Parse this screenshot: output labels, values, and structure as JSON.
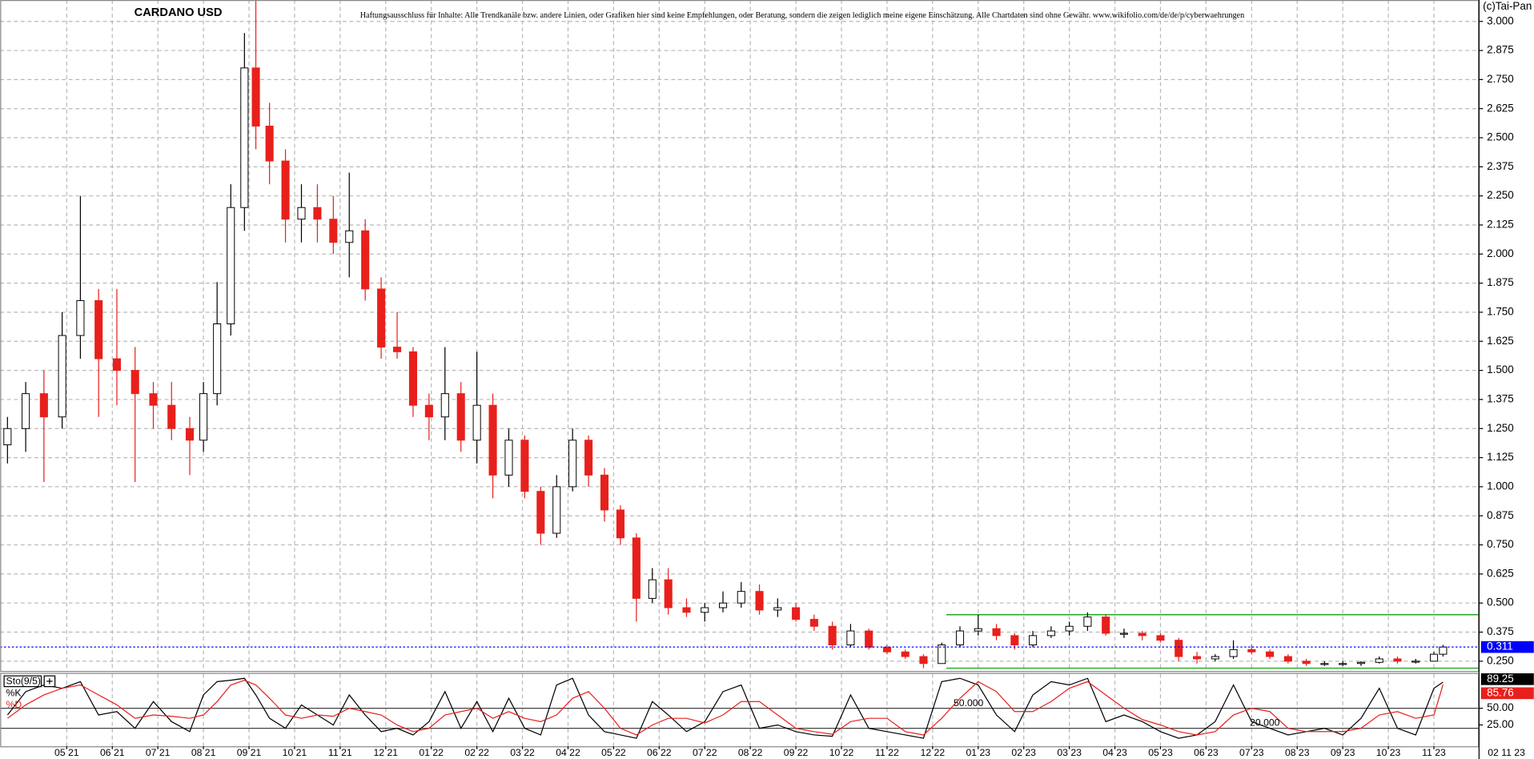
{
  "chart_data": [
    {
      "type": "candlestick",
      "title": "CARDANO USD",
      "disclaimer": "Haftungsausschluss für Inhalte: Alle Trendkanäle bzw. andere Linien, oder Grafiken hier sind keine Empfehlungen, oder Beratung, sondern die zeigen lediglich meine eigene Einschätzung. Alle Chartdaten sind ohne Gewähr. www.wikifolio.com/de/de/p/cyberwaehrungen",
      "copyright": "(c)Tai-Pan",
      "x_end_label": "02 11 23",
      "up_color": "#ffffff",
      "down_color": "#e8201c",
      "x": [
        -1.3,
        -0.9,
        -0.5,
        -0.1,
        0.3,
        0.7,
        1.1,
        1.5,
        1.9,
        2.3,
        2.7,
        3.0,
        3.3,
        3.6,
        3.9,
        4.15,
        4.45,
        4.8,
        5.15,
        5.5,
        5.85,
        6.2,
        6.55,
        6.9,
        7.25,
        7.6,
        7.95,
        8.3,
        8.65,
        9.0,
        9.35,
        9.7,
        10.05,
        10.4,
        10.75,
        11.1,
        11.45,
        11.8,
        12.15,
        12.5,
        12.85,
        13.2,
        13.6,
        14.0,
        14.4,
        14.8,
        15.2,
        15.6,
        16.0,
        16.4,
        16.8,
        17.2,
        17.6,
        18.0,
        18.4,
        18.8,
        19.2,
        19.6,
        20.0,
        20.4,
        20.8,
        21.2,
        21.6,
        22.0,
        22.4,
        22.8,
        23.2,
        23.6,
        24.0,
        24.4,
        24.8,
        25.2,
        25.6,
        26.0,
        26.4,
        26.8,
        27.2,
        27.6,
        28.0,
        28.4,
        28.8,
        29.2,
        29.6,
        30.0,
        30.2
      ],
      "open": [
        1.18,
        1.25,
        1.4,
        1.3,
        1.65,
        1.8,
        1.55,
        1.5,
        1.4,
        1.35,
        1.25,
        1.2,
        1.4,
        1.7,
        2.2,
        2.8,
        2.55,
        2.4,
        2.15,
        2.2,
        2.15,
        2.05,
        2.1,
        1.85,
        1.6,
        1.58,
        1.35,
        1.3,
        1.4,
        1.2,
        1.35,
        1.05,
        1.2,
        0.98,
        0.8,
        1.0,
        1.2,
        1.05,
        0.9,
        0.78,
        0.52,
        0.6,
        0.48,
        0.46,
        0.48,
        0.5,
        0.55,
        0.47,
        0.48,
        0.43,
        0.4,
        0.32,
        0.38,
        0.31,
        0.29,
        0.27,
        0.24,
        0.32,
        0.38,
        0.39,
        0.36,
        0.32,
        0.36,
        0.38,
        0.4,
        0.44,
        0.37,
        0.37,
        0.36,
        0.34,
        0.27,
        0.26,
        0.27,
        0.3,
        0.29,
        0.27,
        0.25,
        0.24,
        0.24,
        0.24,
        0.245,
        0.26,
        0.25,
        0.25,
        0.28
      ],
      "high": [
        1.3,
        1.45,
        1.5,
        1.75,
        2.25,
        1.85,
        1.85,
        1.6,
        1.45,
        1.45,
        1.3,
        1.45,
        1.88,
        2.3,
        2.95,
        3.1,
        2.65,
        2.45,
        2.3,
        2.3,
        2.25,
        2.35,
        2.15,
        1.9,
        1.75,
        1.6,
        1.4,
        1.6,
        1.45,
        1.58,
        1.4,
        1.25,
        1.22,
        1.0,
        1.05,
        1.25,
        1.22,
        1.08,
        0.92,
        0.8,
        0.65,
        0.65,
        0.52,
        0.5,
        0.55,
        0.59,
        0.58,
        0.52,
        0.5,
        0.45,
        0.42,
        0.41,
        0.39,
        0.32,
        0.3,
        0.28,
        0.33,
        0.4,
        0.45,
        0.41,
        0.37,
        0.38,
        0.4,
        0.42,
        0.46,
        0.45,
        0.39,
        0.38,
        0.37,
        0.35,
        0.29,
        0.28,
        0.34,
        0.32,
        0.3,
        0.28,
        0.26,
        0.25,
        0.25,
        0.25,
        0.27,
        0.27,
        0.26,
        0.29,
        0.32
      ],
      "low": [
        1.1,
        1.15,
        1.02,
        1.25,
        1.55,
        1.3,
        1.35,
        1.02,
        1.25,
        1.2,
        1.05,
        1.15,
        1.35,
        1.65,
        2.1,
        2.45,
        2.3,
        2.05,
        2.05,
        2.05,
        2.0,
        1.9,
        1.8,
        1.55,
        1.55,
        1.3,
        1.2,
        1.2,
        1.15,
        1.1,
        0.95,
        1.0,
        0.95,
        0.75,
        0.78,
        0.98,
        1.0,
        0.85,
        0.75,
        0.42,
        0.5,
        0.45,
        0.44,
        0.42,
        0.46,
        0.48,
        0.45,
        0.44,
        0.42,
        0.38,
        0.3,
        0.31,
        0.3,
        0.28,
        0.26,
        0.22,
        0.24,
        0.31,
        0.36,
        0.34,
        0.3,
        0.31,
        0.35,
        0.36,
        0.38,
        0.36,
        0.35,
        0.34,
        0.33,
        0.25,
        0.24,
        0.25,
        0.26,
        0.28,
        0.26,
        0.24,
        0.23,
        0.23,
        0.23,
        0.23,
        0.24,
        0.24,
        0.24,
        0.25,
        0.27
      ],
      "close": [
        1.25,
        1.4,
        1.3,
        1.65,
        1.8,
        1.55,
        1.5,
        1.4,
        1.35,
        1.25,
        1.2,
        1.4,
        1.7,
        2.2,
        2.8,
        2.55,
        2.4,
        2.15,
        2.2,
        2.15,
        2.05,
        2.1,
        1.85,
        1.6,
        1.58,
        1.35,
        1.3,
        1.4,
        1.2,
        1.35,
        1.05,
        1.2,
        0.98,
        0.8,
        1.0,
        1.2,
        1.05,
        0.9,
        0.78,
        0.52,
        0.6,
        0.48,
        0.46,
        0.48,
        0.5,
        0.55,
        0.47,
        0.48,
        0.43,
        0.4,
        0.32,
        0.38,
        0.31,
        0.29,
        0.27,
        0.24,
        0.32,
        0.38,
        0.39,
        0.36,
        0.32,
        0.36,
        0.38,
        0.4,
        0.44,
        0.37,
        0.37,
        0.36,
        0.34,
        0.27,
        0.26,
        0.27,
        0.3,
        0.29,
        0.27,
        0.25,
        0.24,
        0.24,
        0.24,
        0.245,
        0.26,
        0.25,
        0.25,
        0.28,
        0.311
      ],
      "current_color": "#0000ff",
      "lines": [
        {
          "y": 0.45,
          "x0": 19.3,
          "color": "#22aa22"
        },
        {
          "y": 0.22,
          "x0": 19.3,
          "color": "#22aa22"
        }
      ],
      "xlim": [
        -1.46,
        30.99
      ],
      "ylim": [
        0.208,
        3.092
      ],
      "grid": true,
      "xticks": [
        {
          "value": 0,
          "label": "05 21"
        },
        {
          "value": 1,
          "label": "06 21"
        },
        {
          "value": 2,
          "label": "07 21"
        },
        {
          "value": 3,
          "label": "08 21"
        },
        {
          "value": 4,
          "label": "09 21"
        },
        {
          "value": 5,
          "label": "10 21"
        },
        {
          "value": 6,
          "label": "11 21"
        },
        {
          "value": 7,
          "label": "12 21"
        },
        {
          "value": 8,
          "label": "01 22"
        },
        {
          "value": 9,
          "label": "02 22"
        },
        {
          "value": 10,
          "label": "03 22"
        },
        {
          "value": 11,
          "label": "04 22"
        },
        {
          "value": 12,
          "label": "05 22"
        },
        {
          "value": 13,
          "label": "06 22"
        },
        {
          "value": 14,
          "label": "07 22"
        },
        {
          "value": 15,
          "label": "08 22"
        },
        {
          "value": 16,
          "label": "09 22"
        },
        {
          "value": 17,
          "label": "10 22"
        },
        {
          "value": 18,
          "label": "11 22"
        },
        {
          "value": 19,
          "label": "12 22"
        },
        {
          "value": 20,
          "label": "01 23"
        },
        {
          "value": 21,
          "label": "02 23"
        },
        {
          "value": 22,
          "label": "03 23"
        },
        {
          "value": 23,
          "label": "04 23"
        },
        {
          "value": 24,
          "label": "05 23"
        },
        {
          "value": 25,
          "label": "06 23"
        },
        {
          "value": 26,
          "label": "07 23"
        },
        {
          "value": 27,
          "label": "08 23"
        },
        {
          "value": 28,
          "label": "09 23"
        },
        {
          "value": 29,
          "label": "10 23"
        },
        {
          "value": 30,
          "label": "11 23"
        }
      ],
      "yticks": [
        {
          "value": 0.25,
          "label": "0.250"
        },
        {
          "value": 0.375,
          "label": "0.375"
        },
        {
          "value": 0.5,
          "label": "0.500"
        },
        {
          "value": 0.625,
          "label": "0.625"
        },
        {
          "value": 0.75,
          "label": "0.750"
        },
        {
          "value": 0.875,
          "label": "0.875"
        },
        {
          "value": 1,
          "label": "1.000"
        },
        {
          "value": 1.125,
          "label": "1.125"
        },
        {
          "value": 1.25,
          "label": "1.250"
        },
        {
          "value": 1.375,
          "label": "1.375"
        },
        {
          "value": 1.5,
          "label": "1.500"
        },
        {
          "value": 1.625,
          "label": "1.625"
        },
        {
          "value": 1.75,
          "label": "1.750"
        },
        {
          "value": 1.875,
          "label": "1.875"
        },
        {
          "value": 2,
          "label": "2.000"
        },
        {
          "value": 2.125,
          "label": "2.125"
        },
        {
          "value": 2.25,
          "label": "2.250"
        },
        {
          "value": 2.375,
          "label": "2.375"
        },
        {
          "value": 2.5,
          "label": "2.500"
        },
        {
          "value": 2.625,
          "label": "2.625"
        },
        {
          "value": 2.75,
          "label": "2.750"
        },
        {
          "value": 2.875,
          "label": "2.875"
        },
        {
          "value": 3,
          "label": "3.000"
        }
      ]
    },
    {
      "type": "line",
      "title": "Sto(9/5)",
      "x": [
        -1.3,
        -0.9,
        -0.5,
        -0.1,
        0.3,
        0.7,
        1.1,
        1.5,
        1.9,
        2.3,
        2.7,
        3.0,
        3.3,
        3.6,
        3.9,
        4.15,
        4.45,
        4.8,
        5.15,
        5.5,
        5.85,
        6.2,
        6.55,
        6.9,
        7.25,
        7.6,
        7.95,
        8.3,
        8.65,
        9.0,
        9.35,
        9.7,
        10.05,
        10.4,
        10.75,
        11.1,
        11.45,
        11.8,
        12.15,
        12.5,
        12.85,
        13.2,
        13.6,
        14.0,
        14.4,
        14.8,
        15.2,
        15.6,
        16.0,
        16.4,
        16.8,
        17.2,
        17.6,
        18.0,
        18.4,
        18.8,
        19.2,
        19.6,
        20.0,
        20.4,
        20.8,
        21.2,
        21.6,
        22.0,
        22.4,
        22.8,
        23.2,
        23.6,
        24.0,
        24.4,
        24.8,
        25.2,
        25.6,
        26.0,
        26.4,
        26.8,
        27.2,
        27.6,
        28.0,
        28.4,
        28.8,
        29.2,
        29.6,
        30.0,
        30.2
      ],
      "series": [
        {
          "name": "%K",
          "color": "#000000",
          "values": [
            40,
            75,
            85,
            80,
            90,
            40,
            45,
            20,
            60,
            30,
            15,
            70,
            90,
            92,
            95,
            70,
            35,
            20,
            55,
            40,
            25,
            70,
            40,
            15,
            20,
            10,
            30,
            75,
            20,
            60,
            15,
            65,
            20,
            10,
            85,
            95,
            40,
            15,
            10,
            5,
            60,
            40,
            15,
            30,
            75,
            85,
            20,
            25,
            15,
            10,
            8,
            70,
            20,
            15,
            10,
            5,
            90,
            95,
            85,
            40,
            15,
            70,
            90,
            85,
            95,
            30,
            40,
            30,
            15,
            5,
            10,
            30,
            85,
            30,
            20,
            10,
            15,
            20,
            10,
            35,
            80,
            20,
            10,
            80,
            89.25
          ]
        },
        {
          "name": "%D",
          "color": "#e8201c",
          "values": [
            35,
            55,
            70,
            80,
            85,
            70,
            55,
            35,
            40,
            38,
            35,
            40,
            60,
            85,
            92,
            85,
            65,
            40,
            35,
            40,
            38,
            50,
            45,
            40,
            25,
            15,
            20,
            40,
            45,
            50,
            35,
            45,
            35,
            30,
            40,
            65,
            75,
            50,
            20,
            10,
            25,
            35,
            35,
            28,
            40,
            60,
            60,
            40,
            20,
            15,
            11,
            30,
            35,
            35,
            15,
            10,
            35,
            65,
            90,
            75,
            45,
            45,
            60,
            80,
            90,
            70,
            50,
            33,
            25,
            15,
            10,
            15,
            40,
            50,
            45,
            20,
            15,
            15,
            15,
            20,
            40,
            45,
            35,
            40,
            85.76
          ]
        }
      ],
      "levels": [
        {
          "value": 50,
          "label": "50.000"
        },
        {
          "value": 20,
          "label": "20.000"
        }
      ],
      "xlim": [
        -1.46,
        30.99
      ],
      "ylim": [
        -7,
        103
      ],
      "yticks": [
        {
          "value": 50,
          "label": "50.00"
        },
        {
          "value": 25,
          "label": "25.00"
        }
      ]
    }
  ]
}
